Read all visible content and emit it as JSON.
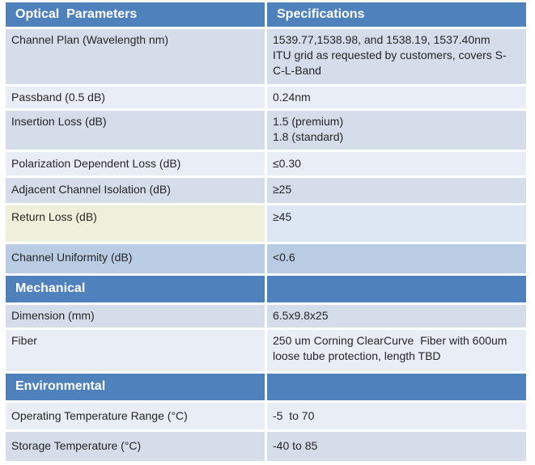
{
  "colors": {
    "header_blue": "#4f81bd",
    "band_dark": "#d5dcea",
    "band_light": "#e9edf5",
    "highlight_cream": "#eef0da",
    "return_spec_blue": "#dce7f3",
    "uniformity_blue": "#b9cce4",
    "body_text": "#262626",
    "header_text": "#ffffff"
  },
  "table": {
    "header": {
      "param": "Optical  Parameters",
      "spec": "Specifications"
    },
    "optical_rows": [
      {
        "param": "Channel Plan (Wavelength nm)",
        "spec": "1539.77,1538.98, and 1538.19, 1537.40nm\nITU grid as requested by customers, covers S-\nC-L-Band"
      },
      {
        "param": "Passband (0.5 dB)",
        "spec": "0.24nm"
      },
      {
        "param": "Insertion Loss (dB)",
        "spec": "1.5 (premium)\n1.8 (standard)"
      },
      {
        "param": "Polarization Dependent Loss (dB)",
        "spec": "≤0.30"
      },
      {
        "param": "Adjacent Channel Isolation (dB)",
        "spec": "≥25"
      },
      {
        "param": "Return Loss (dB)",
        "spec": "≥45"
      },
      {
        "param": "Channel Uniformity (dB)",
        "spec": "<0.6"
      }
    ],
    "mechanical": {
      "title": "Mechanical",
      "rows": [
        {
          "param": "Dimension (mm)",
          "spec": "6.5x9.8x25"
        },
        {
          "param": "Fiber",
          "spec": "250 um Corning ClearCurve  Fiber with 600um\nloose tube protection, length TBD"
        }
      ]
    },
    "environmental": {
      "title": "Environmental",
      "rows": [
        {
          "param": "Operating Temperature Range (°C)",
          "spec": "-5  to 70"
        },
        {
          "param": "Storage Temperature (°C)",
          "spec": "-40 to 85"
        }
      ]
    }
  }
}
